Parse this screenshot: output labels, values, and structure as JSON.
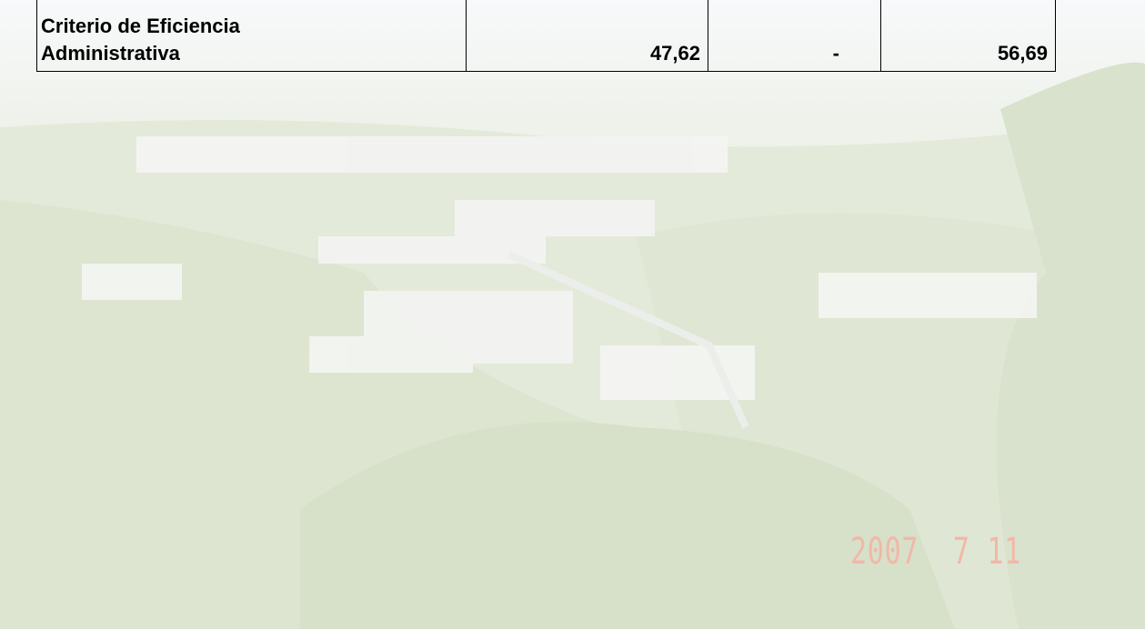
{
  "table": {
    "rows": [
      [
        [
          "Criterio de Eficiencia",
          "Administrativa"
        ],
        "47,62",
        "-",
        "56,69"
      ]
    ]
  },
  "photo": {
    "date_stamp": "2007  7 11"
  }
}
